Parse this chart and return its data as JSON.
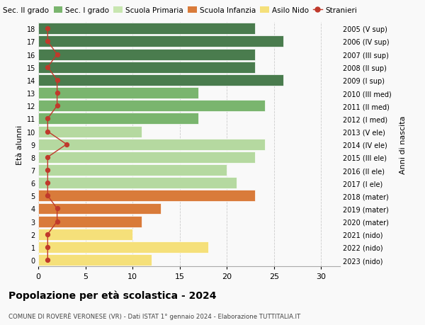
{
  "ages": [
    18,
    17,
    16,
    15,
    14,
    13,
    12,
    11,
    10,
    9,
    8,
    7,
    6,
    5,
    4,
    3,
    2,
    1,
    0
  ],
  "right_labels": [
    "2005 (V sup)",
    "2006 (IV sup)",
    "2007 (III sup)",
    "2008 (II sup)",
    "2009 (I sup)",
    "2010 (III med)",
    "2011 (II med)",
    "2012 (I med)",
    "2013 (V ele)",
    "2014 (IV ele)",
    "2015 (III ele)",
    "2016 (II ele)",
    "2017 (I ele)",
    "2018 (mater)",
    "2019 (mater)",
    "2020 (mater)",
    "2021 (nido)",
    "2022 (nido)",
    "2023 (nido)"
  ],
  "bar_values": [
    23,
    26,
    23,
    23,
    26,
    17,
    24,
    17,
    11,
    24,
    23,
    20,
    21,
    23,
    13,
    11,
    10,
    18,
    12
  ],
  "bar_colors": [
    "#4a7c4e",
    "#4a7c4e",
    "#4a7c4e",
    "#4a7c4e",
    "#4a7c4e",
    "#7ab56e",
    "#7ab56e",
    "#7ab56e",
    "#b5d9a0",
    "#b5d9a0",
    "#b5d9a0",
    "#b5d9a0",
    "#b5d9a0",
    "#d97b3a",
    "#d97b3a",
    "#d97b3a",
    "#f5e07a",
    "#f5e07a",
    "#f5e07a"
  ],
  "stranieri_values": [
    1,
    1,
    2,
    1,
    2,
    2,
    2,
    1,
    1,
    3,
    1,
    1,
    1,
    1,
    2,
    2,
    1,
    1,
    1
  ],
  "ylabel": "Età alunni",
  "right_ylabel": "Anni di nascita",
  "title": "Popolazione per età scolastica - 2024",
  "subtitle": "COMUNE DI ROVERÈ VERONESE (VR) - Dati ISTAT 1° gennaio 2024 - Elaborazione TUTTITALIA.IT",
  "xlim": [
    0,
    32
  ],
  "xticks": [
    0,
    5,
    10,
    15,
    20,
    25,
    30
  ],
  "legend_labels": [
    "Sec. II grado",
    "Sec. I grado",
    "Scuola Primaria",
    "Scuola Infanzia",
    "Asilo Nido",
    "Stranieri"
  ],
  "legend_colors": [
    "#4a7c4e",
    "#7ab56e",
    "#c8e6b0",
    "#d97b3a",
    "#f5e07a",
    "#c0392b"
  ],
  "bg_color": "#f9f9f9",
  "grid_color": "#cccccc",
  "stranieri_color": "#c0392b"
}
